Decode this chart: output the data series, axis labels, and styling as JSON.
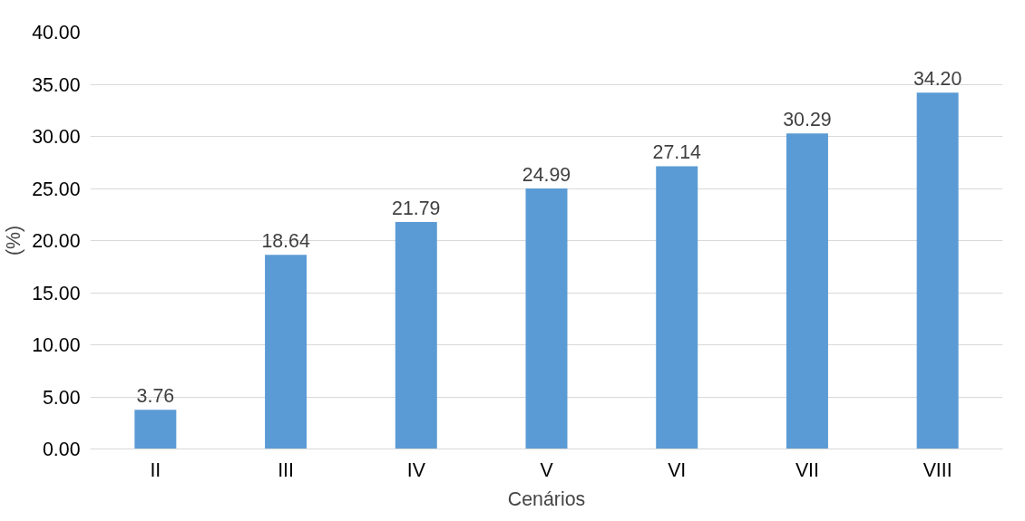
{
  "chart_data": {
    "type": "bar",
    "xlabel": "Cenários",
    "ylabel": "(%)",
    "categories": [
      "II",
      "III",
      "IV",
      "V",
      "VI",
      "VII",
      "VIII"
    ],
    "values": [
      3.76,
      18.64,
      21.79,
      24.99,
      27.14,
      30.29,
      34.2
    ],
    "value_labels": [
      "3.76",
      "18.64",
      "21.79",
      "24.99",
      "27.14",
      "30.29",
      "34.20"
    ],
    "color": "#5b9bd5",
    "ylim": [
      0,
      40
    ],
    "yticks": [
      {
        "value": 0,
        "label": "0.00"
      },
      {
        "value": 5,
        "label": "5.00"
      },
      {
        "value": 10,
        "label": "10.00"
      },
      {
        "value": 15,
        "label": "15.00"
      },
      {
        "value": 20,
        "label": "20.00"
      },
      {
        "value": 25,
        "label": "25.00"
      },
      {
        "value": 30,
        "label": "30.00"
      },
      {
        "value": 35,
        "label": "35.00"
      },
      {
        "value": 40,
        "label": "40.00"
      }
    ],
    "grid": "y"
  }
}
